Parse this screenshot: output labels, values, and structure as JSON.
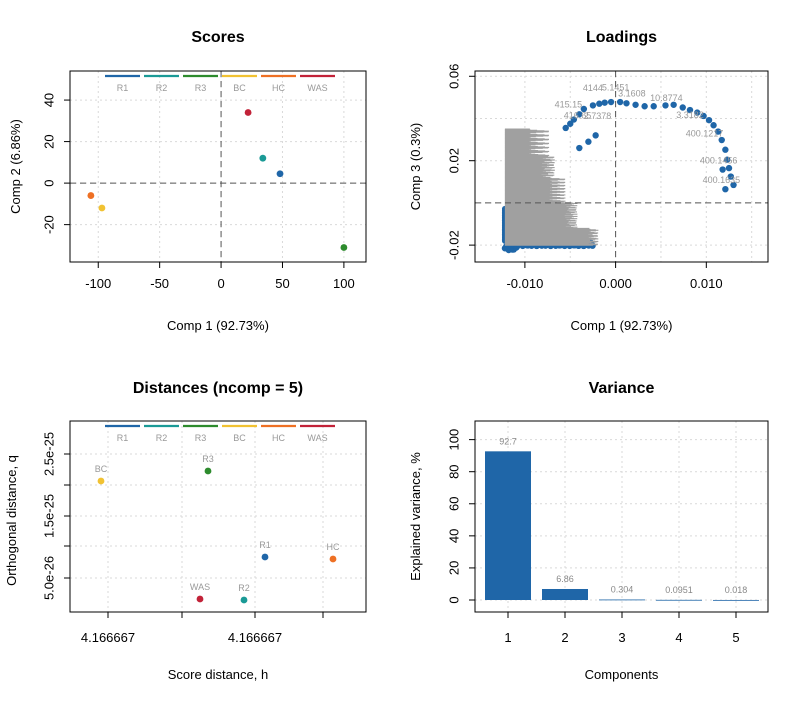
{
  "colors": {
    "R1": "#1f66a8",
    "R2": "#1a9a96",
    "R3": "#2d8b2d",
    "BC": "#f1c232",
    "HC": "#ee7024",
    "WAS": "#c22238",
    "loading": "#1f66a8",
    "loading_gray": "#a0a0a0",
    "bar": "#1f66a8"
  },
  "chart_data": [
    {
      "type": "scatter",
      "title": "Scores",
      "xlabel": "Comp 1 (92.73%)",
      "ylabel": "Comp 2 (6.86%)",
      "xlim": [
        -123,
        118
      ],
      "ylim": [
        -38,
        54
      ],
      "xticks": [
        -100,
        -50,
        0,
        50,
        100
      ],
      "xtick_labels": [
        "-100",
        "-50",
        "0",
        "50",
        "100"
      ],
      "yticks": [
        -20,
        0,
        20,
        40
      ],
      "ytick_labels": [
        "-20",
        "0",
        "20",
        "40"
      ],
      "legend": [
        "R1",
        "R2",
        "R3",
        "BC",
        "HC",
        "WAS"
      ],
      "legend_position": "top",
      "grid": true,
      "points": [
        {
          "group": "HC",
          "x": -106,
          "y": -6
        },
        {
          "group": "BC",
          "x": -97,
          "y": -12
        },
        {
          "group": "WAS",
          "x": 22,
          "y": 34
        },
        {
          "group": "R2",
          "x": 34,
          "y": 12
        },
        {
          "group": "R1",
          "x": 48,
          "y": 4.5
        },
        {
          "group": "R3",
          "x": 100,
          "y": -31
        }
      ]
    },
    {
      "type": "scatter",
      "title": "Loadings",
      "xlabel": "Comp 1 (92.73%)",
      "ylabel": "Comp 3 (0.3%)",
      "xlim": [
        -0.0155,
        0.0168
      ],
      "ylim": [
        -0.028,
        0.0625
      ],
      "xticks": [
        -0.01,
        0,
        0.01
      ],
      "xtick_labels": [
        "-0.010",
        "0.000",
        "0.010"
      ],
      "yticks": [
        -0.02,
        0.02,
        0.06
      ],
      "ytick_labels": [
        "-0.02",
        "0.02",
        "0.06"
      ],
      "grid": true,
      "arc_points": [
        [
          -0.0055,
          0.0355
        ],
        [
          -0.005,
          0.0375
        ],
        [
          -0.0046,
          0.0395
        ],
        [
          -0.004,
          0.042
        ],
        [
          -0.0035,
          0.0445
        ],
        [
          -0.0025,
          0.0462
        ],
        [
          -0.0018,
          0.047
        ],
        [
          -0.0012,
          0.0475
        ],
        [
          -0.0005,
          0.0478
        ],
        [
          0.0005,
          0.0478
        ],
        [
          0.0012,
          0.0472
        ],
        [
          0.0022,
          0.0465
        ],
        [
          0.0032,
          0.0458
        ],
        [
          0.0042,
          0.0458
        ],
        [
          0.0055,
          0.0462
        ],
        [
          0.0064,
          0.0465
        ],
        [
          0.0074,
          0.0452
        ],
        [
          0.0082,
          0.044
        ],
        [
          0.009,
          0.0428
        ],
        [
          0.0097,
          0.0412
        ],
        [
          0.0103,
          0.0392
        ],
        [
          0.0108,
          0.0368
        ],
        [
          0.0113,
          0.0338
        ],
        [
          0.0117,
          0.0298
        ],
        [
          0.0121,
          0.0252
        ],
        [
          0.0123,
          0.0205
        ],
        [
          0.0125,
          0.0165
        ],
        [
          0.0127,
          0.0125
        ],
        [
          0.013,
          0.0085
        ],
        [
          -0.0022,
          0.032
        ],
        [
          -0.003,
          0.029
        ],
        [
          -0.004,
          0.026
        ]
      ],
      "labeled_points": [
        {
          "label": "400.1635",
          "x": 0.0121,
          "y": 0.0065
        },
        {
          "label": "400.1456",
          "x": 0.0118,
          "y": 0.0158
        }
      ],
      "partial_labels": [
        "4144",
        "5.1451",
        "415.15",
        "416.65",
        "3.1608",
        "10.8774",
        "2.7378",
        "400.1217",
        "3.3182"
      ]
    },
    {
      "type": "scatter",
      "title": "Distances (ncomp = 5)",
      "xlabel": "Score distance, h",
      "ylabel": "Orthogonal distance, q",
      "xtick_labels": [
        "4.166667",
        "4.166667"
      ],
      "ytick_labels": [
        "5.0e-26",
        "1.5e-25",
        "2.5e-25"
      ],
      "legend": [
        "R1",
        "R2",
        "R3",
        "BC",
        "HC",
        "WAS"
      ],
      "legend_position": "top",
      "grid": true,
      "points": [
        {
          "label": "BC",
          "group": "BC"
        },
        {
          "label": "R3",
          "group": "R3"
        },
        {
          "label": "R1",
          "group": "R1"
        },
        {
          "label": "HC",
          "group": "HC"
        },
        {
          "label": "WAS",
          "group": "WAS"
        },
        {
          "label": "R2",
          "group": "R2"
        }
      ]
    },
    {
      "type": "bar",
      "title": "Variance",
      "xlabel": "Components",
      "ylabel": "Explained variance, %",
      "categories": [
        "1",
        "2",
        "3",
        "4",
        "5"
      ],
      "values": [
        92.7,
        6.86,
        0.304,
        0.0951,
        0.018
      ],
      "value_labels": [
        "92.7",
        "6.86",
        "0.304",
        "0.0951",
        "0.018"
      ],
      "ylim": [
        0,
        106
      ],
      "yticks": [
        0,
        20,
        40,
        60,
        80,
        100
      ],
      "ytick_labels": [
        "0",
        "20",
        "40",
        "60",
        "80",
        "100"
      ],
      "grid": true
    }
  ]
}
